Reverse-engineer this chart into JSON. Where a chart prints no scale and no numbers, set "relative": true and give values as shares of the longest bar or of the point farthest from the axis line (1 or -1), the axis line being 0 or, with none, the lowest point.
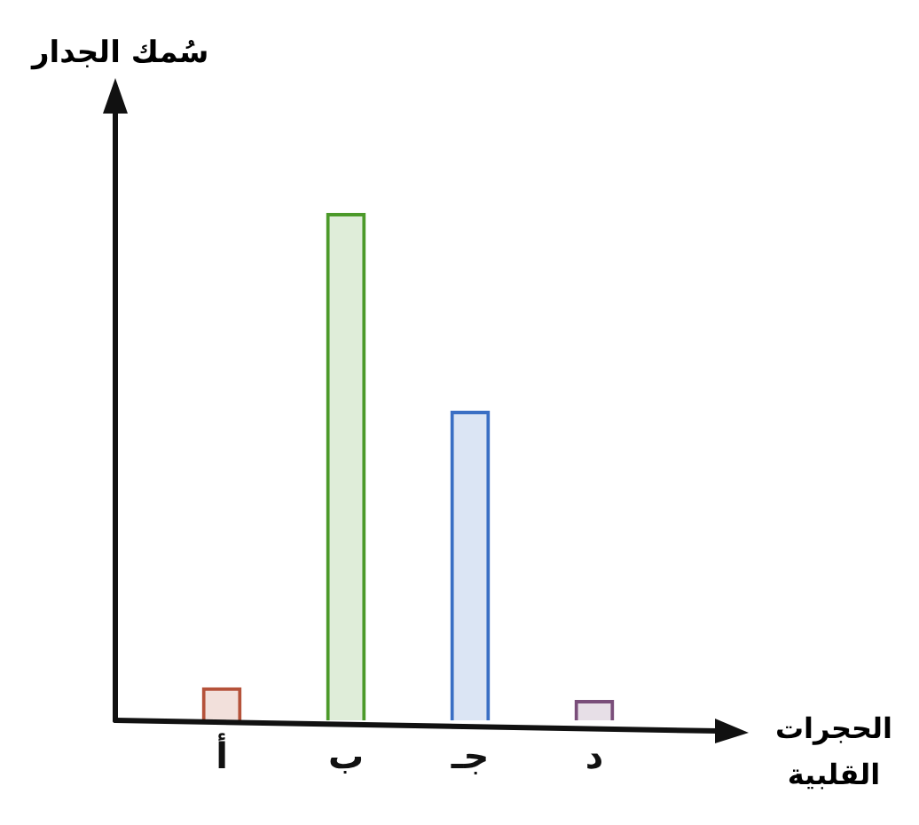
{
  "chart_data": {
    "type": "bar",
    "relative": true,
    "xlabel": "الحجرات القلبية",
    "ylabel": "سُمك الجدار",
    "categories": [
      "أ",
      "ب",
      "جـ",
      "د"
    ],
    "values": [
      0.065,
      1,
      0.61,
      0.04
    ],
    "colors": [
      "#b5523a",
      "#4c9a2a",
      "#3a6fc4",
      "#7a4e7a"
    ],
    "grid": false,
    "legend": false
  }
}
